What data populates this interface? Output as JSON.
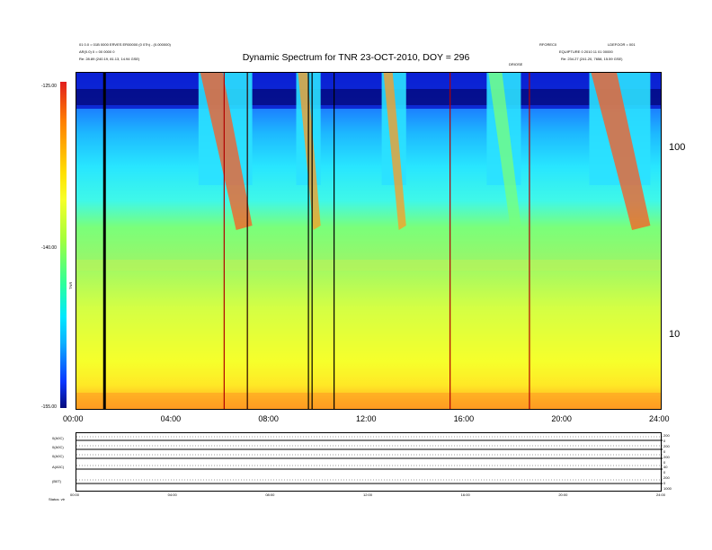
{
  "header": {
    "left_lines": [
      "01 0.0 = 01B 0000 ERVES ER00000 (0 07h) - (0.000000)",
      "AR(0.0) 0 = 00 0000 0",
      "Re: 28.89 (240.19, 81.13, 14.94 GSE)"
    ],
    "right_lines": [
      "LDEFOOR = 001",
      "EQUIPTURE 0 2010 11 01 00000",
      "Re: 234.27 (241.20, 7658, 15.59 GSE)"
    ],
    "center_small": "RFOREC0",
    "marker_label": "DRIOSE"
  },
  "chart_data": {
    "type": "heatmap",
    "title": "Dynamic Spectrum for TNR 23-OCT-2010, DOY = 296",
    "xlabel": "",
    "ylabel": "",
    "x_ticks": [
      "00:00",
      "04:00",
      "08:00",
      "12:00",
      "16:00",
      "20:00",
      "24:00"
    ],
    "xlim_hours": [
      0,
      24
    ],
    "y_right_ticks": [
      "100",
      "10"
    ],
    "y_scale": "log",
    "colorbar": {
      "label": "TNR",
      "ticks": [
        "-125.00",
        "-140.00",
        "-155.00"
      ],
      "range": [
        -155,
        -125
      ],
      "colors": [
        "#e11e1e",
        "#ff7e00",
        "#f7ff28",
        "#2cff9b",
        "#00e8ff",
        "#0a36ff",
        "#050b7c"
      ]
    },
    "vertical_lines": [
      {
        "hour": 1.15,
        "color": "#000000",
        "kind": "data gap"
      },
      {
        "hour": 6.05,
        "color": "#b10000",
        "kind": "spike"
      },
      {
        "hour": 7.0,
        "color": "#2a0000",
        "kind": "spike"
      },
      {
        "hour": 9.5,
        "color": "#000000",
        "kind": "spike"
      },
      {
        "hour": 9.65,
        "color": "#000000",
        "kind": "spike"
      },
      {
        "hour": 10.55,
        "color": "#000000",
        "kind": "spike"
      },
      {
        "hour": 15.3,
        "color": "#b10000",
        "kind": "spike"
      },
      {
        "hour": 18.55,
        "color": "#b10000",
        "kind": "spike"
      }
    ],
    "bursts": [
      {
        "start_hour": 5.0,
        "end_hour": 7.2,
        "color": "#ff5a20"
      },
      {
        "start_hour": 9.0,
        "end_hour": 10.0,
        "color": "#ff9b22"
      },
      {
        "start_hour": 12.5,
        "end_hour": 13.5,
        "color": "#ff9b22"
      },
      {
        "start_hour": 16.8,
        "end_hour": 18.2,
        "color": "#7aff7a"
      },
      {
        "start_hour": 21.0,
        "end_hour": 23.5,
        "color": "#ff5a20"
      }
    ]
  },
  "bottom_panels": {
    "rows": [
      "0(A0C)",
      "0(A0C)",
      "0(A0C)",
      "A(A0C)",
      "(B0T)"
    ],
    "right_scale": [
      "200",
      "0",
      "200",
      "0",
      "200",
      "0",
      "40",
      "0",
      "200",
      "0",
      "1000"
    ],
    "x_ticks": [
      "00:00",
      "04:00",
      "08:00",
      "12:00",
      "16:00",
      "20:00",
      "24:00"
    ],
    "footer": "Status: vtr"
  }
}
